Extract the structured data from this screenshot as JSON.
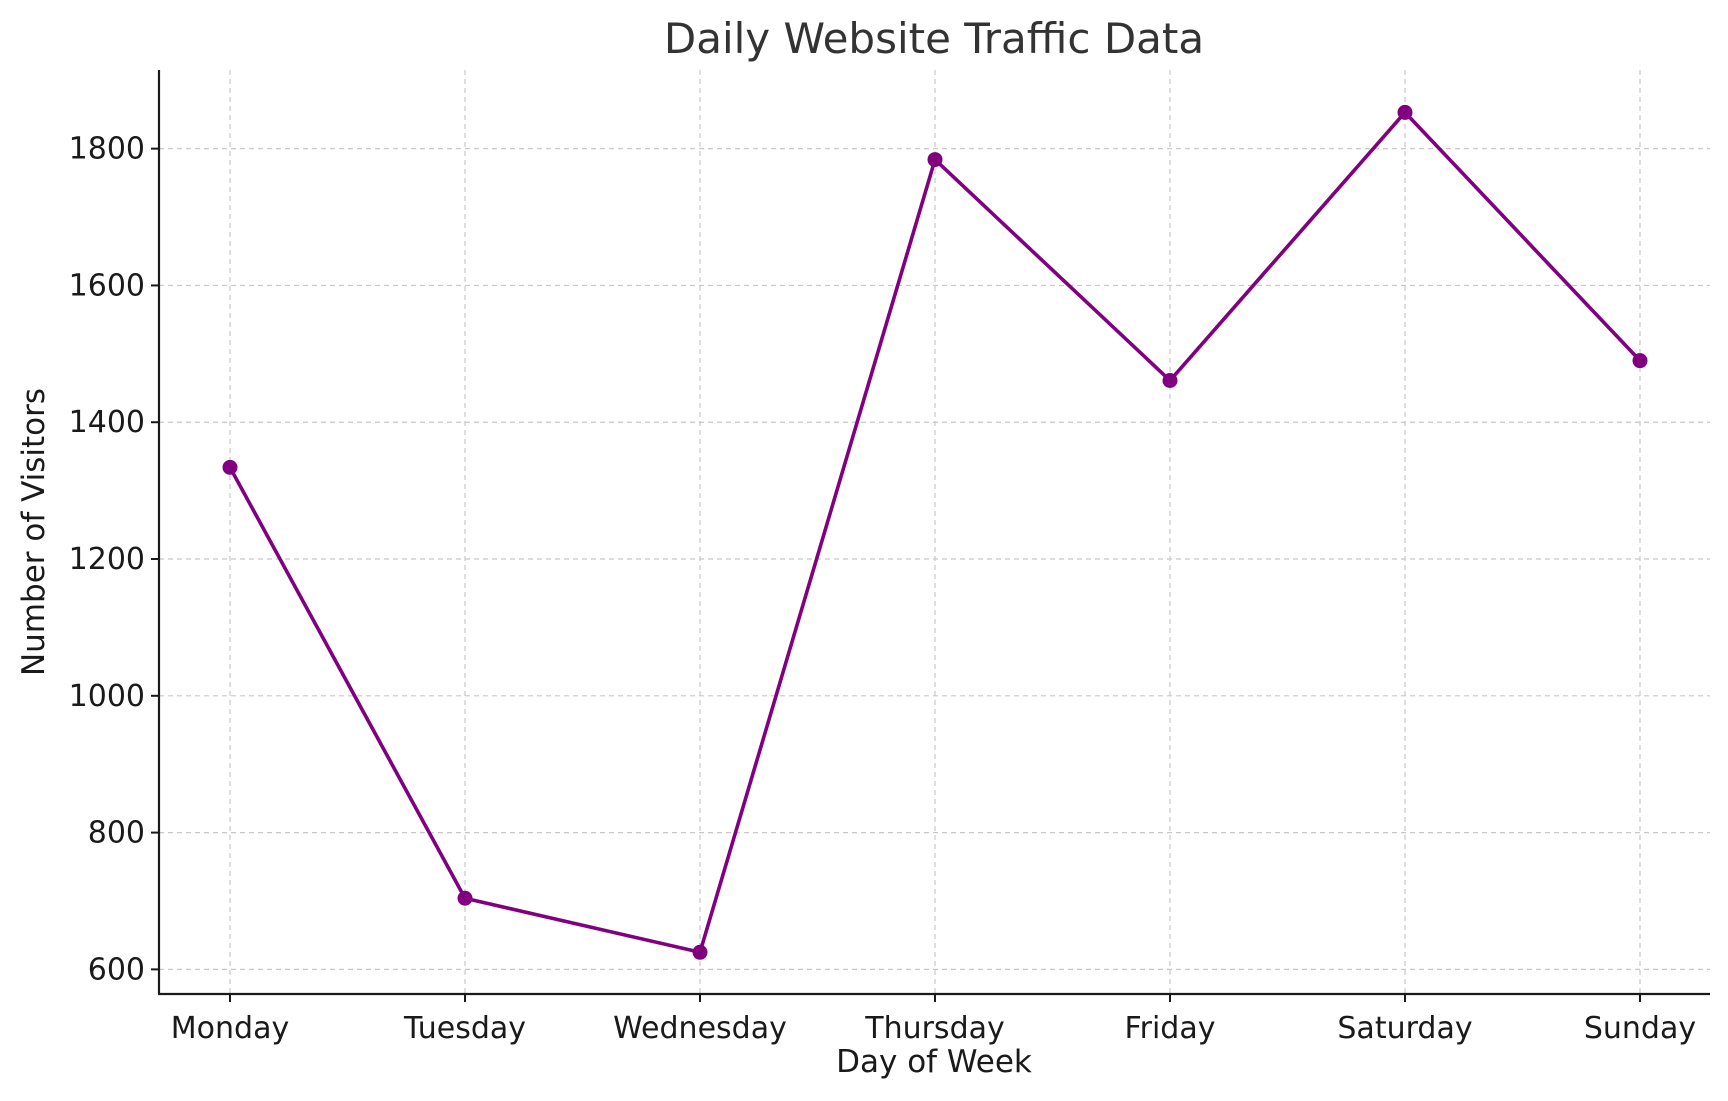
{
  "chart_data": {
    "type": "line",
    "title": "Daily Website Traffic Data",
    "xlabel": "Day of Week",
    "ylabel": "Number of Visitors",
    "categories": [
      "Monday",
      "Tuesday",
      "Wednesday",
      "Thursday",
      "Friday",
      "Saturday",
      "Sunday"
    ],
    "series": [
      {
        "values": [
          1334,
          704,
          625,
          1784,
          1461,
          1853,
          1490
        ],
        "color": "#800080",
        "marker": "circle"
      }
    ],
    "ylim": [
      564,
      1915
    ],
    "yticks": [
      600,
      800,
      1000,
      1200,
      1400,
      1600,
      1800
    ],
    "grid": true,
    "grid_style": "dashed",
    "legend": "none"
  }
}
